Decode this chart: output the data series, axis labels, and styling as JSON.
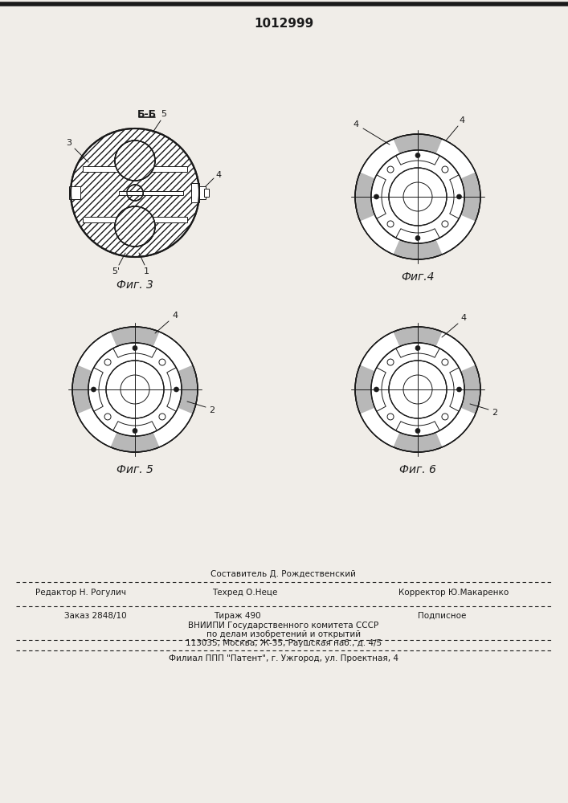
{
  "patent_number": "1012999",
  "fig3_label": "Фиг. 3",
  "fig4_label": "Фиг.4",
  "fig5_label": "Фиг. 5",
  "fig6_label": "Фиг. 6",
  "section_label": "Б-Б",
  "bg_color": "#f0ede8",
  "line_color": "#1a1a1a",
  "footer_line1": "Составитель Д. Рождественский",
  "footer_line2_left": "Редактор Н. Рогулич",
  "footer_line2_mid": "Техред О.Неце",
  "footer_line2_right": "Корректор Ю.Макаренко",
  "footer_line3_left": "Заказ 2848/10",
  "footer_line3_mid": "Тираж 490",
  "footer_line3_right": "Подписное",
  "footer_line4": "ВНИИПИ Государственного комитета СССР",
  "footer_line5": "по делам изобретений и открытий",
  "footer_line6": "113035, Москва, Ж-35, Раушская наб., д. 4/5",
  "footer_line7": "Филиал ППП \"Патент\", г. Ужгород, ул. Проектная, 4"
}
